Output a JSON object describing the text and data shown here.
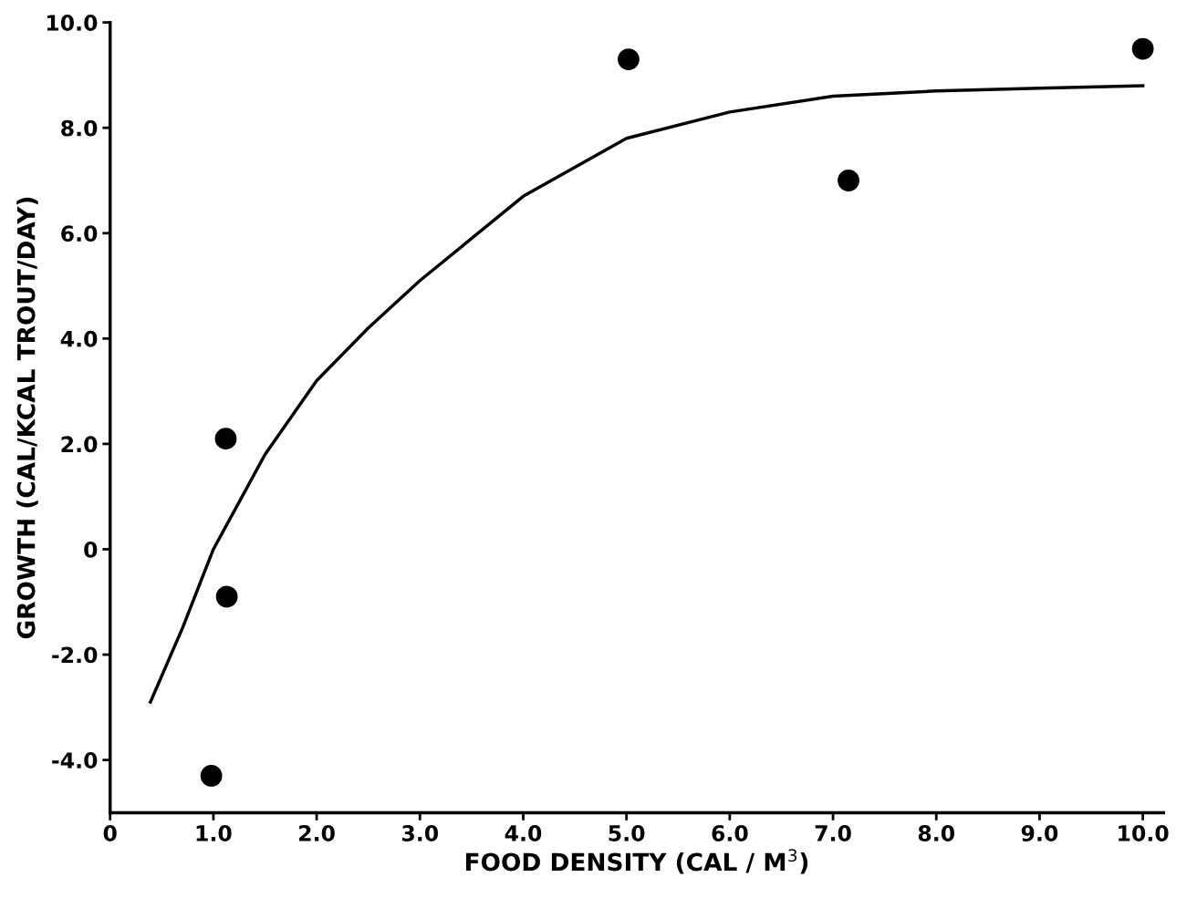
{
  "chart_data": {
    "type": "scatter",
    "xlabel": "FOOD DENSITY (CAL / M$^{3}$)",
    "ylabel": "GROWTH (CAL/KCAL TROUT/DAY)",
    "xlim": [
      0,
      10.2
    ],
    "ylim": [
      -5.0,
      10.0
    ],
    "xticks": [
      {
        "value": 0,
        "label": "0"
      },
      {
        "value": 1,
        "label": "1.0"
      },
      {
        "value": 2,
        "label": "2.0"
      },
      {
        "value": 3,
        "label": "3.0"
      },
      {
        "value": 4,
        "label": "4.0"
      },
      {
        "value": 5,
        "label": "5.0"
      },
      {
        "value": 6,
        "label": "6.0"
      },
      {
        "value": 7,
        "label": "7.0"
      },
      {
        "value": 8,
        "label": "8.0"
      },
      {
        "value": 9,
        "label": "9.0"
      },
      {
        "value": 10,
        "label": "10.0"
      }
    ],
    "yticks": [
      {
        "value": -4,
        "label": "-4.0"
      },
      {
        "value": -2,
        "label": "-2.0"
      },
      {
        "value": 0,
        "label": "0"
      },
      {
        "value": 2,
        "label": "2.0"
      },
      {
        "value": 4,
        "label": "4.0"
      },
      {
        "value": 6,
        "label": "6.0"
      },
      {
        "value": 8,
        "label": "8.0"
      },
      {
        "value": 10,
        "label": "10.0"
      }
    ],
    "grid": false,
    "legend": false,
    "series": [
      {
        "type": "scatter",
        "color": "#000000",
        "marker": "circle",
        "x": [
          0.98,
          1.12,
          1.13,
          5.02,
          7.15,
          10.0
        ],
        "values": [
          -4.3,
          2.1,
          -0.9,
          9.3,
          7.0,
          9.5
        ]
      },
      {
        "type": "line",
        "color": "#000000",
        "marker": "none",
        "line_style": "solid",
        "x": [
          0.39,
          0.7,
          1.0,
          1.5,
          2.0,
          2.5,
          3.0,
          4.0,
          5.0,
          6.0,
          7.0,
          8.0,
          9.0,
          10.0
        ],
        "values": [
          -2.9,
          -1.5,
          0.0,
          1.8,
          3.2,
          4.2,
          5.1,
          6.7,
          7.8,
          8.3,
          8.6,
          8.7,
          8.75,
          8.8
        ]
      }
    ]
  }
}
